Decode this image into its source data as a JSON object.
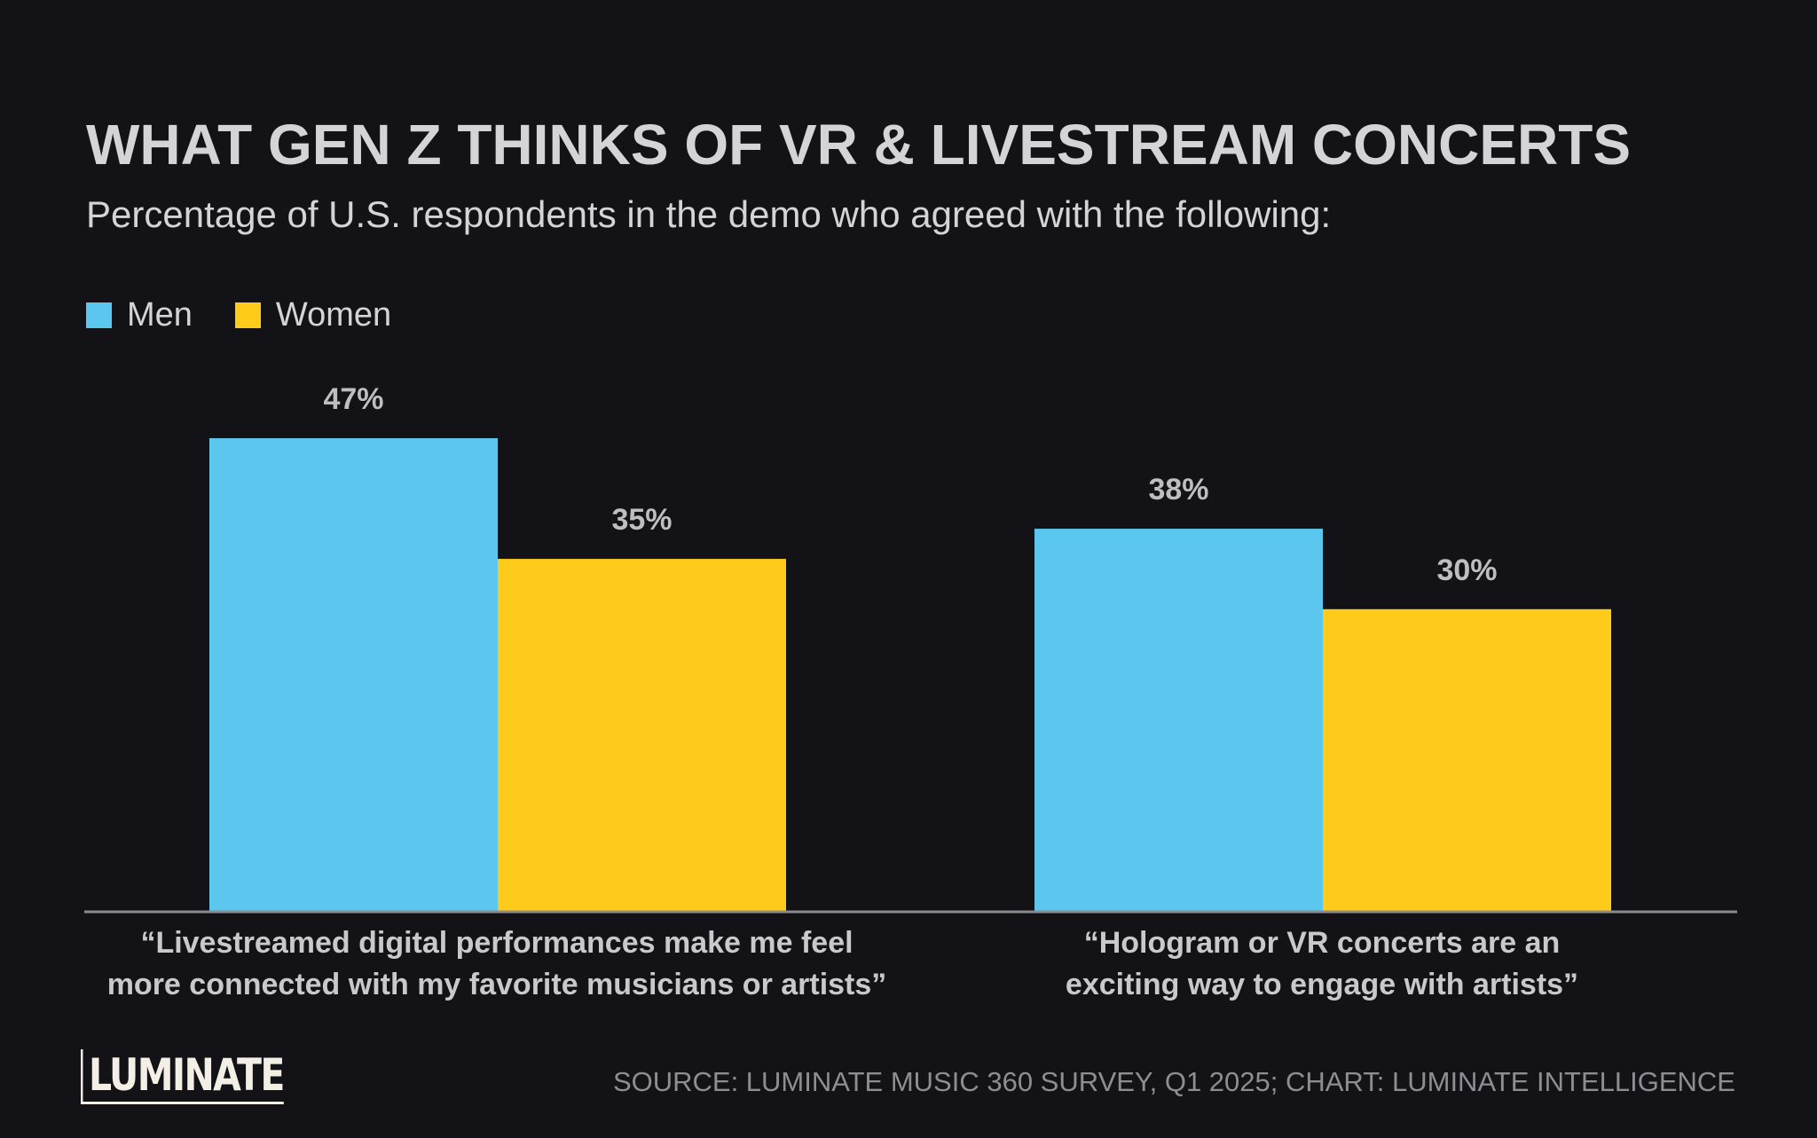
{
  "chart_data": {
    "type": "bar",
    "title": "WHAT GEN Z THINKS OF VR & LIVESTREAM CONCERTS",
    "subtitle": "Percentage of U.S. respondents in the demo who agreed with the following:",
    "categories": [
      "“Livestreamed digital performances make me feel\nmore connected with my favorite musicians or artists”",
      "“Hologram or VR concerts are an\nexciting way to engage with artists”"
    ],
    "series": [
      {
        "name": "Men",
        "color": "#5BC6EE",
        "values": [
          47,
          38
        ],
        "labels": [
          "47%",
          "38%"
        ]
      },
      {
        "name": "Women",
        "color": "#FFCB1A",
        "values": [
          35,
          30
        ],
        "labels": [
          "35%",
          "30%"
        ]
      }
    ],
    "ylim": [
      0,
      47
    ],
    "grid": false,
    "legend_position": "top-left"
  },
  "branding": {
    "logo_text": "LUMINATE"
  },
  "source": "SOURCE: LUMINATE MUSIC 360 SURVEY, Q1 2025; CHART: LUMINATE INTELLIGENCE"
}
